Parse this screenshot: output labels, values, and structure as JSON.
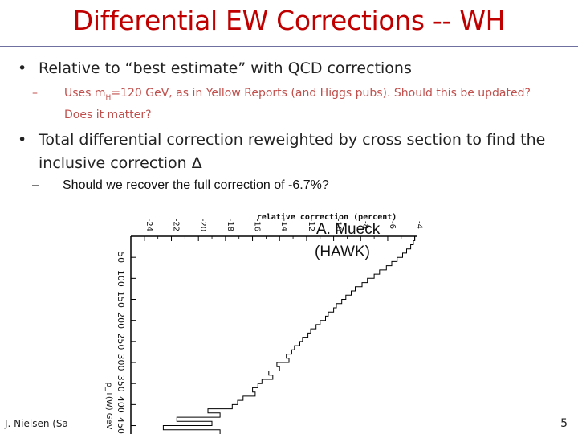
{
  "slide": {
    "title": "Differential EW Corrections -- WH",
    "bullet1": {
      "marker": "•",
      "text": "Relative to “best estimate” with QCD corrections"
    },
    "sub1": {
      "marker": "–",
      "text_before": "Uses m",
      "subscript": "H",
      "text_after": "=120 GeV, as in Yellow Reports (and Higgs pubs).  Should this be updated?  Does it matter?"
    },
    "bullet2": {
      "marker": "•",
      "text": "Total differential correction reweighted by cross section to find the inclusive correction Δ"
    },
    "sub2": {
      "marker": "–",
      "text": "Should we recover the full correction of -6.7%?"
    },
    "annotation_line1": "A. Mueck",
    "annotation_line2": "(HAWK)",
    "footer_left": "J. Nielsen (Sa",
    "page_number": "5"
  },
  "colors": {
    "title": "#c00000",
    "sub_bullet": "#c0504d",
    "text": "#222222"
  },
  "chart_data": {
    "type": "line",
    "title": "relative correction (percent)",
    "xlabel": "p_T(W) GeV",
    "ylabel": "relative correction (percent)",
    "note": "figure shown rotated 90° clockwise; correction axis runs along top, pT axis runs down the left",
    "value_ticks": [
      "-24",
      "-22",
      "-20",
      "-18",
      "-16",
      "-14",
      "-12",
      "-10",
      "-8",
      "-6",
      "-4"
    ],
    "pt_ticks": [
      "50",
      "100",
      "150",
      "200",
      "250",
      "300",
      "350",
      "400",
      "450"
    ],
    "xlim": [
      0,
      470
    ],
    "ylim": [
      -25,
      -3.8
    ],
    "series": [
      {
        "x": [
          0,
          10,
          20,
          30,
          40,
          50,
          60,
          70,
          80,
          90,
          100,
          110,
          120,
          130,
          140,
          150,
          160,
          170,
          180,
          190,
          200,
          210,
          220,
          230,
          240,
          250,
          260,
          270,
          280,
          290,
          300,
          310,
          320,
          330,
          340,
          350,
          360,
          370,
          380,
          390,
          400,
          410,
          420,
          430,
          440,
          450,
          460
        ],
        "y": [
          -4.0,
          -4.1,
          -4.3,
          -4.6,
          -4.9,
          -5.3,
          -5.7,
          -6.1,
          -6.6,
          -7.0,
          -7.5,
          -7.9,
          -8.4,
          -8.7,
          -9.1,
          -9.4,
          -9.8,
          -10.0,
          -10.4,
          -10.6,
          -11.0,
          -11.3,
          -11.7,
          -11.9,
          -12.3,
          -12.5,
          -12.9,
          -13.1,
          -13.5,
          -13.3,
          -14.2,
          -14.0,
          -14.8,
          -14.5,
          -15.3,
          -15.6,
          -16.0,
          -15.8,
          -16.7,
          -17.1,
          -17.5,
          -19.3,
          -18.4,
          -21.6,
          -19.0,
          -22.6,
          -18.4
        ]
      }
    ]
  }
}
